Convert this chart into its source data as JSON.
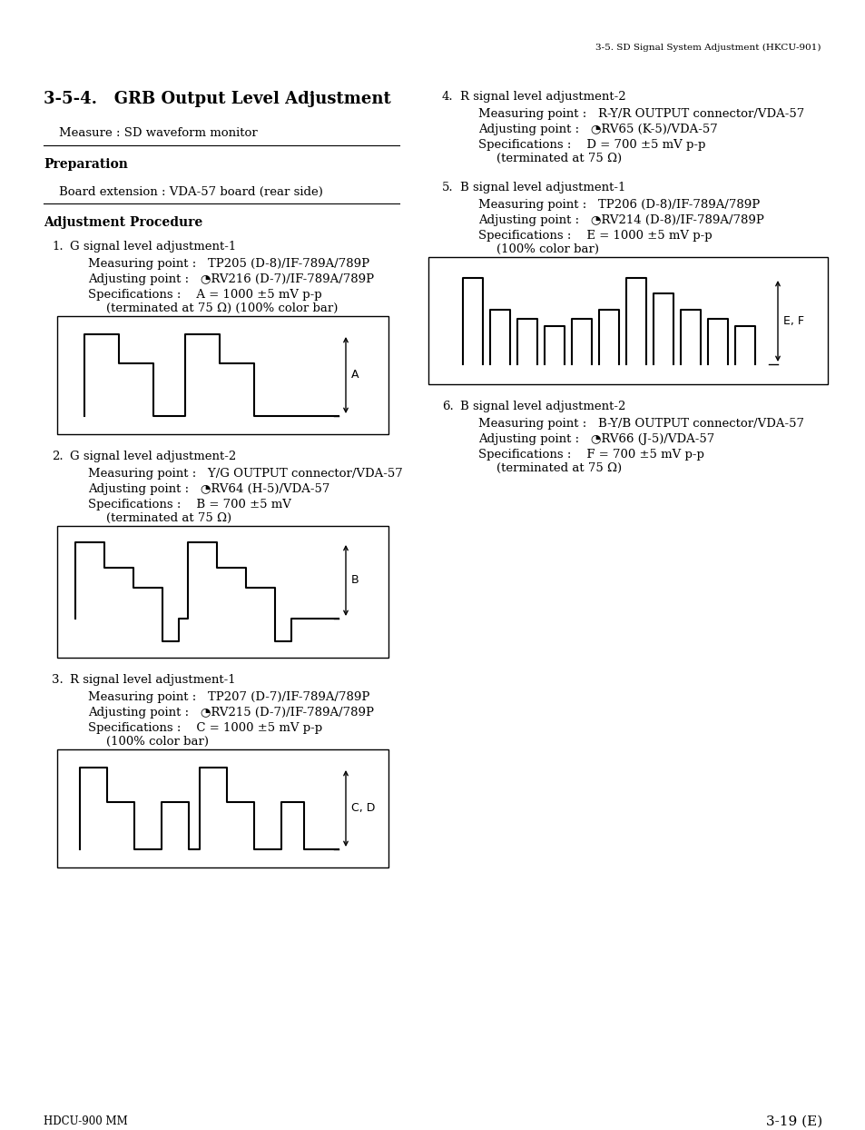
{
  "page_header": "3-5. SD Signal System Adjustment (HKCU-901)",
  "section_title": "3-5-4.   GRB Output Level Adjustment",
  "measure_text": "Measure : SD waveform monitor",
  "prep_title": "Preparation",
  "prep_body": "Board extension : VDA-57 board (rear side)",
  "adj_title": "Adjustment Procedure",
  "items": [
    {
      "num": "1.",
      "title": "G signal level adjustment-1",
      "lines": [
        "Measuring point :   TP205 (D-8)/IF-789A/789P",
        "Adjusting point :   ◔RV216 (D-7)/IF-789A/789P",
        "Specifications :    A = 1000 ±5 mV p-p",
        "(terminated at 75 Ω) (100% color bar)"
      ],
      "diagram": "staircase2step",
      "label": "A"
    },
    {
      "num": "2.",
      "title": "G signal level adjustment-2",
      "lines": [
        "Measuring point :   Y/G OUTPUT connector/VDA-57",
        "Adjusting point :   ◔RV64 (H-5)/VDA-57",
        "Specifications :    B = 700 ±5 mV",
        "(terminated at 75 Ω)"
      ],
      "diagram": "staircase_sync",
      "label": "B"
    },
    {
      "num": "3.",
      "title": "R signal level adjustment-1",
      "lines": [
        "Measuring point :   TP207 (D-7)/IF-789A/789P",
        "Adjusting point :   ◔RV215 (D-7)/IF-789A/789P",
        "Specifications :    C = 1000 ±5 mV p-p",
        "(100% color bar)"
      ],
      "diagram": "staircase_cd",
      "label": "C, D"
    }
  ],
  "right_items": [
    {
      "num": "4.",
      "title": "R signal level adjustment-2",
      "lines": [
        "Measuring point :   R-Y/R OUTPUT connector/VDA-57",
        "Adjusting point :   ◔RV65 (K-5)/VDA-57",
        "Specifications :    D = 700 ±5 mV p-p",
        "(terminated at 75 Ω)"
      ]
    },
    {
      "num": "5.",
      "title": "B signal level adjustment-1",
      "lines": [
        "Measuring point :   TP206 (D-8)/IF-789A/789P",
        "Adjusting point :   ◔RV214 (D-8)/IF-789A/789P",
        "Specifications :    E = 1000 ±5 mV p-p",
        "(100% color bar)"
      ],
      "diagram": "colorbars",
      "label": "E, F"
    },
    {
      "num": "6.",
      "title": "B signal level adjustment-2",
      "lines": [
        "Measuring point :   B-Y/B OUTPUT connector/VDA-57",
        "Adjusting point :   ◔RV66 (J-5)/VDA-57",
        "Specifications :    F = 700 ±5 mV p-p",
        "(terminated at 75 Ω)"
      ]
    }
  ],
  "footer_left": "HDCU-900 MM",
  "footer_right": "3-19 (E)",
  "bg_color": "#ffffff"
}
